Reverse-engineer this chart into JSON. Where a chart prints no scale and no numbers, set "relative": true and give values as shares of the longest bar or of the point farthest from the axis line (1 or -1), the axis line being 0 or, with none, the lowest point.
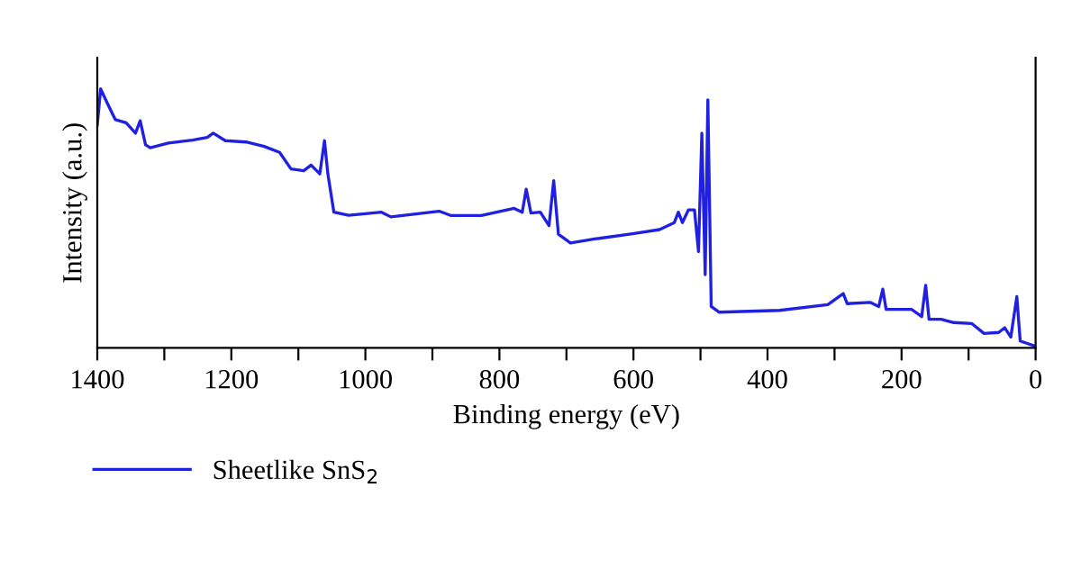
{
  "chart_data": {
    "type": "line",
    "relative": true,
    "xlabel": "Binding energy (eV)",
    "ylabel": "Intensity (a.u.)",
    "xlim": [
      1400,
      0
    ],
    "xticks": [
      1400,
      {
        "value": 1300,
        "label": null
      },
      1200,
      {
        "value": 1100,
        "label": null
      },
      1000,
      {
        "value": 900,
        "label": null
      },
      800,
      {
        "value": 700,
        "label": null
      },
      600,
      {
        "value": 500,
        "label": null
      },
      400,
      {
        "value": 300,
        "label": null
      },
      200,
      {
        "value": 100,
        "label": null
      },
      0
    ],
    "legend": "bottom left",
    "grid": false,
    "series": [
      {
        "name": "Sheetlike SnS$_{2}$",
        "color": "#2020e0",
        "x": [
          1400,
          1395,
          1384,
          1373,
          1357,
          1343,
          1336,
          1328,
          1321,
          1294,
          1258,
          1236,
          1227,
          1209,
          1178,
          1151,
          1128,
          1111,
          1092,
          1081,
          1068,
          1061,
          1056,
          1047,
          1025,
          976,
          962,
          890,
          872,
          827,
          778,
          766,
          760,
          753,
          739,
          726,
          719,
          712,
          694,
          658,
          651,
          606,
          561,
          539,
          533,
          527,
          518,
          509,
          503,
          498,
          493,
          489,
          484,
          472,
          382,
          310,
          287,
          281,
          247,
          234,
          228,
          223,
          185,
          170,
          164,
          159,
          141,
          122,
          95,
          77,
          55,
          46,
          37,
          28,
          23,
          1
        ],
        "values": [
          0.862,
          1.0,
          0.939,
          0.881,
          0.869,
          0.829,
          0.877,
          0.784,
          0.773,
          0.791,
          0.802,
          0.813,
          0.829,
          0.8,
          0.795,
          0.778,
          0.755,
          0.691,
          0.684,
          0.706,
          0.672,
          0.8,
          0.672,
          0.524,
          0.512,
          0.524,
          0.506,
          0.528,
          0.511,
          0.511,
          0.539,
          0.524,
          0.613,
          0.521,
          0.524,
          0.472,
          0.646,
          0.439,
          0.405,
          0.421,
          0.423,
          0.439,
          0.457,
          0.484,
          0.524,
          0.484,
          0.533,
          0.533,
          0.372,
          0.829,
          0.283,
          0.958,
          0.16,
          0.138,
          0.145,
          0.167,
          0.21,
          0.171,
          0.176,
          0.16,
          0.227,
          0.149,
          0.149,
          0.121,
          0.242,
          0.111,
          0.111,
          0.098,
          0.094,
          0.056,
          0.06,
          0.078,
          0.042,
          0.198,
          0.027,
          0.007
        ]
      }
    ]
  }
}
